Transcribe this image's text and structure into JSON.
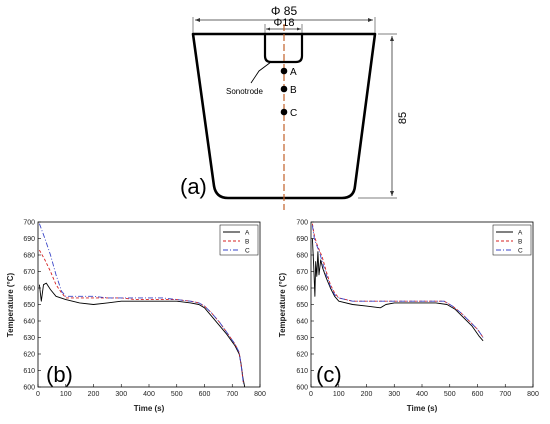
{
  "schematic": {
    "dim_top": "Φ 85",
    "dim_inner": "Φ18",
    "dim_side": "85",
    "sonotrode_label": "Sonotrode",
    "points": [
      "A",
      "B",
      "C"
    ],
    "panel_label": "(a)"
  },
  "chart_data": [
    {
      "type": "line",
      "panel_label": "(b)",
      "xlabel": "Time (s)",
      "ylabel": "Temperature (°C)",
      "xlim": [
        0,
        800
      ],
      "ylim": [
        600,
        700
      ],
      "xticks": [
        0,
        100,
        200,
        300,
        400,
        500,
        600,
        700,
        800
      ],
      "yticks": [
        600,
        610,
        620,
        630,
        640,
        650,
        660,
        670,
        680,
        690,
        700
      ],
      "legend": "top-right",
      "series": [
        {
          "name": "A",
          "color": "#000000",
          "dash": "",
          "points": [
            [
              5,
              662
            ],
            [
              12,
              652
            ],
            [
              20,
              662
            ],
            [
              30,
              663
            ],
            [
              45,
              659
            ],
            [
              65,
              655
            ],
            [
              100,
              653
            ],
            [
              150,
              651
            ],
            [
              200,
              650
            ],
            [
              250,
              651
            ],
            [
              300,
              652
            ],
            [
              350,
              652
            ],
            [
              400,
              652
            ],
            [
              450,
              652
            ],
            [
              500,
              652
            ],
            [
              550,
              651
            ],
            [
              580,
              650
            ],
            [
              600,
              648
            ],
            [
              620,
              644
            ],
            [
              650,
              638
            ],
            [
              680,
              632
            ],
            [
              710,
              625
            ],
            [
              725,
              620
            ],
            [
              732,
              614
            ],
            [
              738,
              606
            ],
            [
              745,
              600
            ]
          ]
        },
        {
          "name": "B",
          "color": "#d42020",
          "dash": "3,2",
          "points": [
            [
              5,
              683
            ],
            [
              25,
              677
            ],
            [
              45,
              670
            ],
            [
              65,
              662
            ],
            [
              85,
              657
            ],
            [
              100,
              654
            ],
            [
              150,
              654
            ],
            [
              200,
              654
            ],
            [
              250,
              654
            ],
            [
              300,
              654
            ],
            [
              350,
              653
            ],
            [
              400,
              653
            ],
            [
              450,
              653
            ],
            [
              500,
              653
            ],
            [
              550,
              652
            ],
            [
              580,
              651
            ],
            [
              600,
              649
            ],
            [
              625,
              645
            ],
            [
              655,
              639
            ],
            [
              685,
              632
            ],
            [
              710,
              626
            ],
            [
              725,
              621
            ],
            [
              733,
              612
            ],
            [
              740,
              602
            ]
          ]
        },
        {
          "name": "C",
          "color": "#3a46c8",
          "dash": "5,2,1,2",
          "points": [
            [
              5,
              699
            ],
            [
              25,
              690
            ],
            [
              45,
              680
            ],
            [
              65,
              668
            ],
            [
              85,
              658
            ],
            [
              100,
              655
            ],
            [
              150,
              655
            ],
            [
              200,
              655
            ],
            [
              250,
              654
            ],
            [
              300,
              654
            ],
            [
              350,
              654
            ],
            [
              400,
              654
            ],
            [
              450,
              654
            ],
            [
              500,
              653
            ],
            [
              550,
              652
            ],
            [
              580,
              651
            ],
            [
              600,
              649
            ],
            [
              625,
              645
            ],
            [
              655,
              639
            ],
            [
              685,
              632
            ],
            [
              710,
              626
            ],
            [
              725,
              621
            ],
            [
              733,
              612
            ],
            [
              740,
              602
            ]
          ]
        }
      ]
    },
    {
      "type": "line",
      "panel_label": "(c)",
      "xlabel": "Time (s)",
      "ylabel": "Temperature (°C)",
      "xlim": [
        0,
        800
      ],
      "ylim": [
        600,
        700
      ],
      "xticks": [
        0,
        100,
        200,
        300,
        400,
        500,
        600,
        700,
        800
      ],
      "yticks": [
        600,
        610,
        620,
        630,
        640,
        650,
        660,
        670,
        680,
        690,
        700
      ],
      "legend": "top-right",
      "series": [
        {
          "name": "A",
          "color": "#000000",
          "dash": "",
          "points": [
            [
              5,
              690
            ],
            [
              10,
              672
            ],
            [
              14,
              655
            ],
            [
              17,
              676
            ],
            [
              21,
              667
            ],
            [
              25,
              682
            ],
            [
              29,
              668
            ],
            [
              35,
              677
            ],
            [
              42,
              672
            ],
            [
              55,
              666
            ],
            [
              70,
              660
            ],
            [
              85,
              655
            ],
            [
              100,
              652
            ],
            [
              150,
              650
            ],
            [
              200,
              649
            ],
            [
              250,
              648
            ],
            [
              270,
              650
            ],
            [
              300,
              651
            ],
            [
              350,
              651
            ],
            [
              400,
              651
            ],
            [
              450,
              651
            ],
            [
              490,
              650
            ],
            [
              520,
              647
            ],
            [
              550,
              642
            ],
            [
              580,
              637
            ],
            [
              605,
              631
            ],
            [
              620,
              628
            ]
          ]
        },
        {
          "name": "B",
          "color": "#d42020",
          "dash": "3,2",
          "points": [
            [
              5,
              699
            ],
            [
              12,
              692
            ],
            [
              20,
              687
            ],
            [
              30,
              683
            ],
            [
              40,
              679
            ],
            [
              55,
              670
            ],
            [
              70,
              662
            ],
            [
              85,
              657
            ],
            [
              100,
              654
            ],
            [
              150,
              652
            ],
            [
              200,
              652
            ],
            [
              250,
              652
            ],
            [
              300,
              652
            ],
            [
              350,
              652
            ],
            [
              400,
              652
            ],
            [
              450,
              652
            ],
            [
              480,
              652
            ],
            [
              510,
              649
            ],
            [
              540,
              645
            ],
            [
              570,
              640
            ],
            [
              600,
              635
            ],
            [
              620,
              630
            ]
          ]
        },
        {
          "name": "C",
          "color": "#3a46c8",
          "dash": "5,2,1,2",
          "points": [
            [
              5,
              698
            ],
            [
              12,
              690
            ],
            [
              20,
              686
            ],
            [
              30,
              682
            ],
            [
              42,
              675
            ],
            [
              55,
              668
            ],
            [
              70,
              661
            ],
            [
              85,
              656
            ],
            [
              100,
              654
            ],
            [
              150,
              652
            ],
            [
              200,
              652
            ],
            [
              250,
              652
            ],
            [
              300,
              652
            ],
            [
              350,
              652
            ],
            [
              400,
              652
            ],
            [
              450,
              652
            ],
            [
              480,
              652
            ],
            [
              510,
              649
            ],
            [
              540,
              645
            ],
            [
              570,
              640
            ],
            [
              600,
              635
            ],
            [
              620,
              630
            ]
          ]
        }
      ]
    }
  ]
}
